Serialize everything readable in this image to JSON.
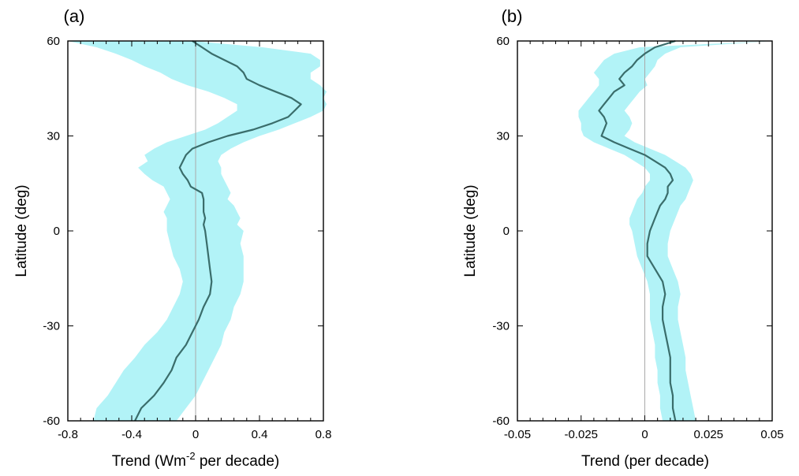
{
  "colors": {
    "band": "#b2f3f7",
    "line": "#3a6d6b",
    "zero": "#aaaaaa",
    "axis": "#000000"
  },
  "chart_data": [
    {
      "type": "line",
      "panel_label": "(a)",
      "xlabel_main": "Trend (Wm",
      "xlabel_sup": "-2",
      "xlabel_rest": " per decade)",
      "ylabel": "Latitude (deg)",
      "xlim": [
        -0.8,
        0.8
      ],
      "ylim": [
        -60,
        60
      ],
      "xticks": [
        {
          "v": -0.8,
          "label": "-0.8"
        },
        {
          "v": -0.4,
          "label": "-0.4"
        },
        {
          "v": 0,
          "label": "0"
        },
        {
          "v": 0.4,
          "label": "0.4"
        },
        {
          "v": 0.8,
          "label": "0.8"
        }
      ],
      "yticks": [
        {
          "v": 60,
          "label": "60"
        },
        {
          "v": 30,
          "label": "30"
        },
        {
          "v": 0,
          "label": "0"
        },
        {
          "v": -30,
          "label": "-30"
        },
        {
          "v": -60,
          "label": "-60"
        }
      ],
      "series": [
        {
          "latitude": [
            60,
            58,
            56,
            54,
            52,
            50,
            48,
            46,
            44,
            42,
            40,
            38,
            36,
            34,
            32,
            30,
            28,
            26,
            24,
            22,
            20,
            18,
            16,
            14,
            12,
            10,
            8,
            6,
            4,
            2,
            0,
            -4,
            -8,
            -12,
            -16,
            -20,
            -24,
            -28,
            -32,
            -36,
            -40,
            -44,
            -48,
            -52,
            -56,
            -60
          ],
          "trend": [
            -0.02,
            0.04,
            0.1,
            0.18,
            0.26,
            0.3,
            0.32,
            0.4,
            0.5,
            0.6,
            0.66,
            0.62,
            0.58,
            0.48,
            0.36,
            0.2,
            0.08,
            -0.02,
            -0.06,
            -0.08,
            -0.1,
            -0.08,
            -0.05,
            -0.03,
            0.04,
            0.05,
            0.05,
            0.05,
            0.06,
            0.05,
            0.06,
            0.07,
            0.08,
            0.09,
            0.1,
            0.09,
            0.05,
            0.02,
            -0.02,
            -0.06,
            -0.12,
            -0.15,
            -0.2,
            -0.26,
            -0.34,
            -0.38
          ],
          "lower": [
            -0.8,
            -0.62,
            -0.5,
            -0.4,
            -0.32,
            -0.22,
            -0.15,
            -0.05,
            0.08,
            0.18,
            0.26,
            0.26,
            0.2,
            0.14,
            0.06,
            -0.06,
            -0.18,
            -0.26,
            -0.32,
            -0.3,
            -0.36,
            -0.32,
            -0.27,
            -0.2,
            -0.18,
            -0.16,
            -0.18,
            -0.2,
            -0.18,
            -0.18,
            -0.18,
            -0.16,
            -0.14,
            -0.1,
            -0.08,
            -0.1,
            -0.14,
            -0.18,
            -0.24,
            -0.32,
            -0.38,
            -0.45,
            -0.5,
            -0.55,
            -0.62,
            -0.64
          ],
          "upper": [
            -0.02,
            0.42,
            0.72,
            0.78,
            0.78,
            0.72,
            0.72,
            0.78,
            0.82,
            0.8,
            0.82,
            0.8,
            0.72,
            0.62,
            0.52,
            0.4,
            0.3,
            0.22,
            0.16,
            0.14,
            0.16,
            0.16,
            0.18,
            0.2,
            0.22,
            0.2,
            0.24,
            0.26,
            0.28,
            0.26,
            0.3,
            0.28,
            0.3,
            0.3,
            0.3,
            0.28,
            0.24,
            0.22,
            0.18,
            0.16,
            0.12,
            0.08,
            0.04,
            0.0,
            -0.06,
            -0.12
          ]
        }
      ]
    },
    {
      "type": "line",
      "panel_label": "(b)",
      "xlabel_main": "Trend (per decade)",
      "xlabel_sup": "",
      "xlabel_rest": "",
      "ylabel": "Latitude (deg)",
      "xlim": [
        -0.05,
        0.05
      ],
      "ylim": [
        -60,
        60
      ],
      "xticks": [
        {
          "v": -0.05,
          "label": "-0.05"
        },
        {
          "v": -0.025,
          "label": "-0.025"
        },
        {
          "v": 0,
          "label": "0"
        },
        {
          "v": 0.025,
          "label": "0.025"
        },
        {
          "v": 0.05,
          "label": "0.05"
        }
      ],
      "yticks": [
        {
          "v": 60,
          "label": "60"
        },
        {
          "v": 30,
          "label": "30"
        },
        {
          "v": 0,
          "label": "0"
        },
        {
          "v": -30,
          "label": "-30"
        },
        {
          "v": -60,
          "label": "-60"
        }
      ],
      "series": [
        {
          "latitude": [
            60,
            58,
            56,
            54,
            52,
            50,
            48,
            46,
            44,
            42,
            40,
            38,
            36,
            34,
            32,
            30,
            28,
            26,
            24,
            22,
            20,
            18,
            16,
            14,
            12,
            10,
            8,
            6,
            4,
            2,
            0,
            -4,
            -8,
            -12,
            -16,
            -20,
            -24,
            -28,
            -32,
            -36,
            -40,
            -44,
            -48,
            -52,
            -56,
            -60
          ],
          "trend": [
            0.012,
            0.004,
            0.0,
            -0.003,
            -0.005,
            -0.008,
            -0.01,
            -0.008,
            -0.012,
            -0.014,
            -0.016,
            -0.018,
            -0.016,
            -0.015,
            -0.016,
            -0.017,
            -0.012,
            -0.006,
            0.0,
            0.004,
            0.008,
            0.01,
            0.011,
            0.009,
            0.009,
            0.008,
            0.006,
            0.005,
            0.004,
            0.003,
            0.002,
            0.001,
            0.001,
            0.004,
            0.007,
            0.008,
            0.007,
            0.007,
            0.008,
            0.009,
            0.01,
            0.01,
            0.01,
            0.011,
            0.011,
            0.012
          ],
          "lower": [
            0.05,
            -0.002,
            -0.012,
            -0.016,
            -0.018,
            -0.02,
            -0.018,
            -0.018,
            -0.02,
            -0.022,
            -0.024,
            -0.026,
            -0.026,
            -0.025,
            -0.025,
            -0.024,
            -0.02,
            -0.014,
            -0.008,
            -0.004,
            0.0,
            0.002,
            0.002,
            0.0,
            -0.001,
            -0.003,
            -0.004,
            -0.005,
            -0.006,
            -0.006,
            -0.005,
            -0.004,
            -0.003,
            -0.001,
            0.001,
            0.002,
            0.002,
            0.002,
            0.003,
            0.004,
            0.004,
            0.005,
            0.005,
            0.006,
            0.006,
            0.007
          ],
          "upper": [
            0.05,
            0.014,
            0.008,
            0.005,
            0.004,
            0.002,
            0.0,
            0.001,
            -0.002,
            -0.004,
            -0.006,
            -0.008,
            -0.006,
            -0.005,
            -0.006,
            -0.008,
            -0.004,
            0.002,
            0.008,
            0.012,
            0.016,
            0.018,
            0.019,
            0.018,
            0.017,
            0.016,
            0.014,
            0.013,
            0.012,
            0.011,
            0.01,
            0.009,
            0.009,
            0.011,
            0.013,
            0.014,
            0.013,
            0.013,
            0.014,
            0.015,
            0.016,
            0.016,
            0.017,
            0.018,
            0.019,
            0.02
          ]
        }
      ]
    }
  ]
}
